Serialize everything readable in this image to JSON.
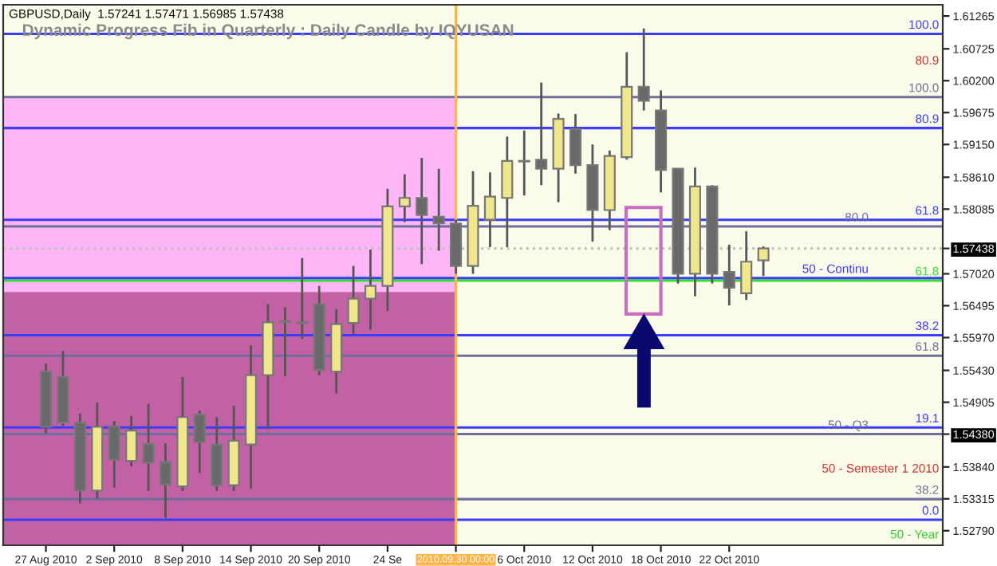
{
  "chart_data": {
    "type": "candlestick",
    "title": "Dynamic Progress Fib in Quarterly : Daily Candle by IQYUSAN",
    "subtitle": "GBPUSD,Daily  1.57241 1.57471 1.56985 1.57438",
    "categories": [
      null,
      null,
      "27 Aug 2010",
      null,
      null,
      null,
      "2 Sep 2010",
      null,
      null,
      null,
      "8 Sep 2010",
      null,
      null,
      null,
      "14 Sep 2010",
      null,
      null,
      null,
      "20 Sep 2010",
      null,
      null,
      null,
      "24 Se",
      null,
      null,
      null,
      "2010.09.30 00:00",
      null,
      null,
      null,
      "6 Oct 2010",
      null,
      null,
      null,
      "12 Oct 2010",
      null,
      null,
      null,
      "18 Oct 2010",
      null,
      null,
      null,
      "22 Oct 2010",
      null,
      null,
      null,
      null,
      null,
      null,
      null,
      null,
      null,
      null,
      null,
      null
    ],
    "ohlc": [
      null,
      null,
      [
        1.5541,
        1.5554,
        1.5439,
        1.545
      ],
      [
        1.5532,
        1.5575,
        1.5452,
        1.5457
      ],
      [
        1.5457,
        1.5472,
        1.5324,
        1.5345
      ],
      [
        1.5345,
        1.549,
        1.5332,
        1.545
      ],
      [
        1.5451,
        1.546,
        1.535,
        1.5396
      ],
      [
        1.5394,
        1.5468,
        1.5385,
        1.5444
      ],
      [
        1.5422,
        1.5488,
        1.5344,
        1.5391
      ],
      [
        1.5392,
        1.5423,
        1.53,
        1.5355
      ],
      [
        1.5352,
        1.5532,
        1.5344,
        1.5466
      ],
      [
        1.547,
        1.5477,
        1.5374,
        1.5425
      ],
      [
        1.5421,
        1.5466,
        1.5344,
        1.5354
      ],
      [
        1.5354,
        1.5485,
        1.5344,
        1.5427
      ],
      [
        1.5421,
        1.5584,
        1.5348,
        1.5535
      ],
      [
        1.5535,
        1.5652,
        1.5446,
        1.5622
      ],
      [
        1.5624,
        1.5647,
        1.5533,
        1.5623
      ],
      [
        1.5621,
        1.5728,
        1.5595,
        1.5622
      ],
      [
        1.5652,
        1.5682,
        1.5535,
        1.5544
      ],
      [
        1.5541,
        1.5644,
        1.5505,
        1.5619
      ],
      [
        1.5621,
        1.5715,
        1.5602,
        1.5661
      ],
      [
        1.5661,
        1.5742,
        1.561,
        1.5682
      ],
      [
        1.5682,
        1.5842,
        1.5641,
        1.5813
      ],
      [
        1.5813,
        1.5866,
        1.5787,
        1.5827
      ],
      [
        1.5827,
        1.5893,
        1.5718,
        1.5799
      ],
      [
        1.5796,
        1.5875,
        1.574,
        1.5785
      ],
      [
        1.5785,
        1.5791,
        1.5702,
        1.5715
      ],
      [
        1.5715,
        1.5871,
        1.5702,
        1.5814
      ],
      [
        1.5791,
        1.5869,
        1.5746,
        1.5829
      ],
      [
        1.5827,
        1.5928,
        1.5746,
        1.5888
      ],
      [
        1.5888,
        1.5938,
        1.5831,
        1.5887
      ],
      [
        1.589,
        1.6017,
        1.5848,
        1.5875
      ],
      [
        1.5875,
        1.5966,
        1.582,
        1.5957
      ],
      [
        1.594,
        1.5965,
        1.5867,
        1.5881
      ],
      [
        1.5881,
        1.5915,
        1.5755,
        1.5807
      ],
      [
        1.5807,
        1.5905,
        1.5774,
        1.5896
      ],
      [
        1.5894,
        1.6067,
        1.589,
        1.601
      ],
      [
        1.601,
        1.6106,
        1.5971,
        1.5987
      ],
      [
        1.5971,
        1.6004,
        1.5836,
        1.5873
      ],
      [
        1.5875,
        1.5876,
        1.5686,
        1.5702
      ],
      [
        1.5702,
        1.5877,
        1.5665,
        1.5846
      ],
      [
        1.5846,
        1.5848,
        1.5686,
        1.5702
      ],
      [
        1.5705,
        1.575,
        1.565,
        1.5679
      ],
      [
        1.567,
        1.5772,
        1.5659,
        1.5722
      ],
      [
        1.57241,
        1.57471,
        1.56985,
        1.57438
      ],
      null,
      null,
      null,
      null,
      null,
      null,
      null,
      null,
      null,
      null
    ],
    "colors": [
      null,
      null,
      "#696969",
      "#696969",
      "#696969",
      "#f0e68c",
      "#696969",
      "#f0e68c",
      "#696969",
      "#696969",
      "#f0e68c",
      "#696969",
      "#696969",
      "#f0e68c",
      "#f0e68c",
      "#f0e68c",
      "#696969",
      "#f0e68c",
      "#696969",
      "#f0e68c",
      "#f0e68c",
      "#f0e68c",
      "#f0e68c",
      "#f0e68c",
      "#696969",
      "#696969",
      "#696969",
      "#f0e68c",
      "#f0e68c",
      "#f0e68c",
      "#696969",
      "#696969",
      "#f0e68c",
      "#696969",
      "#696969",
      "#f0e68c",
      "#f0e68c",
      "#696969",
      "#696969",
      "#696969",
      "#f0e68c",
      "#696969",
      "#696969",
      "#f0e68c",
      "#f0e68c",
      null,
      null,
      null,
      null,
      null,
      null,
      null,
      null,
      null,
      null
    ],
    "ylim": [
      1.5255,
      1.6145
    ],
    "yticks": [
      1.61265,
      1.60725,
      {
        "value": 1.602,
        "label": "1.60200"
      },
      1.59675,
      {
        "value": 1.5915,
        "label": "1.59150"
      },
      {
        "value": 1.5861,
        "label": "1.58610"
      },
      1.58085,
      1.57438,
      {
        "value": 1.5702,
        "label": "1.57020"
      },
      1.56495,
      {
        "value": 1.5597,
        "label": "1.55970"
      },
      {
        "value": 1.5543,
        "label": "1.55430"
      },
      1.54905,
      {
        "value": 1.5438,
        "label": "1.54380"
      },
      {
        "value": 1.5384,
        "label": "1.53840"
      },
      1.53315,
      {
        "value": 1.5279,
        "label": "1.52790"
      }
    ],
    "bands": [
      {
        "axis": "y",
        "from": 1.5672,
        "to": 1.5991,
        "color": "#ffb6f6"
      },
      {
        "axis": "y",
        "from": 1.5255,
        "to": 1.5672,
        "color": "#c262a4"
      }
    ],
    "ref_lines": [
      {
        "axis": "y",
        "value": 1.6097,
        "color": "#3c3cff"
      },
      {
        "axis": "y",
        "value": 1.5942,
        "color": "#3c3cff"
      },
      {
        "axis": "y",
        "value": 1.5791,
        "color": "#3c3cff"
      },
      {
        "axis": "y",
        "value": 1.5691,
        "color": "#33dd33"
      },
      {
        "axis": "y",
        "value": 1.5695,
        "color": "#3c3cff"
      },
      {
        "axis": "y",
        "value": 1.5601,
        "color": "#3c3cff"
      },
      {
        "axis": "y",
        "value": 1.5449,
        "color": "#3c3cff"
      },
      {
        "axis": "y",
        "value": 1.5297,
        "color": "#3c3cff"
      },
      {
        "axis": "y",
        "value": 1.5993,
        "color": "#6e6e9e"
      },
      {
        "axis": "y",
        "value": 1.578,
        "color": "#6e6e9e"
      },
      {
        "axis": "y",
        "value": 1.5567,
        "color": "#6e6e9e"
      },
      {
        "axis": "y",
        "value": 1.5438,
        "color": "#6e6e9e"
      },
      {
        "axis": "y",
        "value": 1.5331,
        "color": "#6e6e9e"
      },
      {
        "axis": "y",
        "value": 1.57438,
        "color": "#c0c0c0",
        "line_style": "dotted"
      },
      {
        "axis": "x",
        "value": "2010.09.30 00:00",
        "color": "#ffb347"
      }
    ],
    "annotations": [
      {
        "text": "100.0",
        "y": 1.6097
      },
      {
        "text": "80.9",
        "y": 1.5942
      },
      {
        "text": "61.8",
        "y": 1.5791
      },
      {
        "text": "61.8",
        "y": 1.5691
      },
      {
        "text": "50 - Continu",
        "y": 1.5695
      },
      {
        "text": "38.2",
        "y": 1.5601
      },
      {
        "text": "19.1",
        "y": 1.5449
      },
      {
        "text": "0.0",
        "y": 1.5297
      },
      {
        "text": "100.0",
        "y": 1.5993
      },
      {
        "text": "80.0",
        "y": 1.578
      },
      {
        "text": "61.8",
        "y": 1.5567
      },
      {
        "text": "50 - Q3",
        "y": 1.5438
      },
      {
        "text": "38.2",
        "y": 1.5331
      },
      "80.9",
      "50 - Semester 1 2010",
      "50 - Year"
    ],
    "legend": false,
    "grid": false
  }
}
